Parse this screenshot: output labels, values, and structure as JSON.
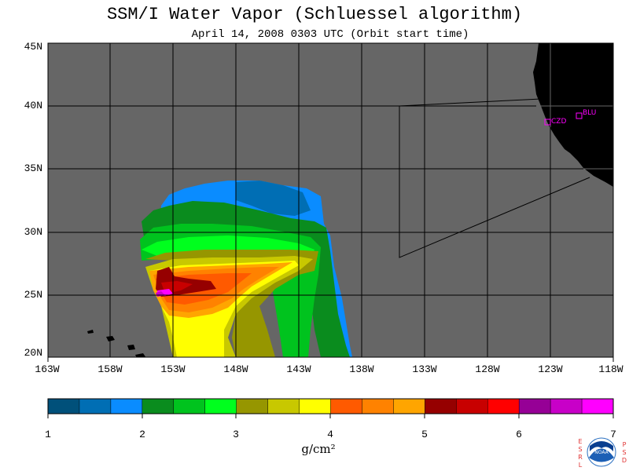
{
  "title": "SSM/I Water Vapor (Schluessel algorithm)",
  "subtitle": "April 14, 2008  0303 UTC  (Orbit start time)",
  "map": {
    "lat_labels": [
      "45N",
      "40N",
      "35N",
      "30N",
      "25N",
      "20N"
    ],
    "lon_labels": [
      "163W",
      "158W",
      "153W",
      "148W",
      "143W",
      "138W",
      "133W",
      "128W",
      "123W",
      "118W"
    ],
    "colors": {
      "background": "#666666",
      "land": "#000000",
      "grid": "#000000",
      "station": "#ff00ff"
    },
    "stations": [
      {
        "label": "CZD",
        "lat": 38.6,
        "lon": -123.2
      },
      {
        "label": "BLU",
        "lat": 39.2,
        "lon": -120.7
      }
    ]
  },
  "colorbar": {
    "tick_labels": [
      "1",
      "2",
      "3",
      "4",
      "5",
      "6",
      "7"
    ],
    "unit": "g/cm²",
    "colors": [
      "#00507a",
      "#006eb4",
      "#0a8cff",
      "#0a8c1e",
      "#00c31e",
      "#00ff1e",
      "#969600",
      "#c8c800",
      "#ffff00",
      "#ff5a00",
      "#ff8200",
      "#ffa500",
      "#960000",
      "#c80000",
      "#ff0000",
      "#960096",
      "#c800c8",
      "#ff00ff"
    ]
  },
  "logo": {
    "left_letters": [
      "E",
      "S",
      "R",
      "L"
    ],
    "right_letters": [
      "P",
      "S",
      "D"
    ],
    "badge_text": "NOAA"
  }
}
